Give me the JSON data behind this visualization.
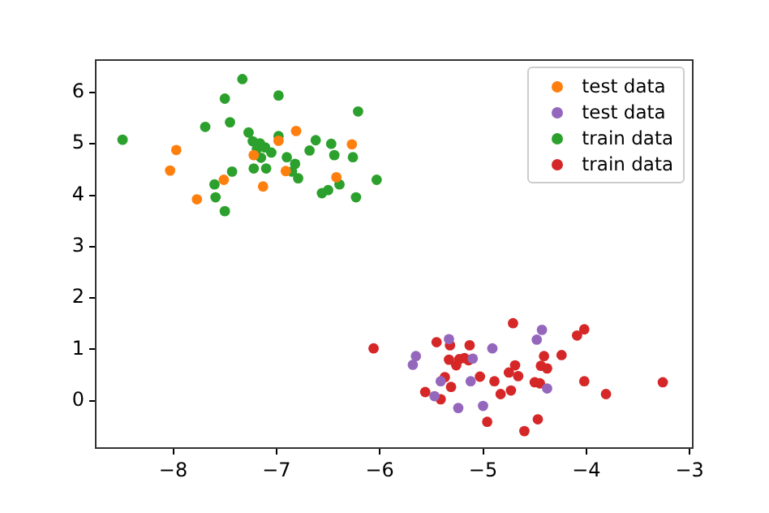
{
  "chart_data": {
    "type": "scatter",
    "xlim": [
      -8.75,
      -2.97
    ],
    "ylim": [
      -0.92,
      6.63
    ],
    "xticks": [
      {
        "value": -8,
        "label": "−8"
      },
      {
        "value": -7,
        "label": "−7"
      },
      {
        "value": -6,
        "label": "−6"
      },
      {
        "value": -5,
        "label": "−5"
      },
      {
        "value": -4,
        "label": "−4"
      },
      {
        "value": -3,
        "label": "−3"
      }
    ],
    "yticks": [
      0,
      1,
      2,
      3,
      4,
      5,
      6
    ],
    "grid": false,
    "legend": "top right",
    "marker": "circle",
    "series": [
      {
        "name": "test data",
        "color": "#ff7f0e",
        "x": [
          -7.97,
          -8.03,
          -7.77,
          -7.51,
          -7.13,
          -6.91,
          -6.81,
          -6.98,
          -7.22,
          -6.42,
          -6.27
        ],
        "values": [
          4.88,
          4.48,
          3.92,
          4.3,
          4.17,
          4.47,
          5.25,
          5.06,
          4.78,
          4.35,
          4.99
        ]
      },
      {
        "name": "test data",
        "color": "#9467bd",
        "x": [
          -5.33,
          -4.43,
          -4.48,
          -5.65,
          -5.68,
          -4.91,
          -5.1,
          -5.41,
          -5.12,
          -5.47,
          -5.24,
          -5.0,
          -4.38
        ],
        "values": [
          1.2,
          1.38,
          1.19,
          0.87,
          0.7,
          1.02,
          0.82,
          0.38,
          0.38,
          0.09,
          -0.14,
          -0.1,
          0.24
        ]
      },
      {
        "name": "train data",
        "color": "#2ca02c",
        "x": [
          -8.49,
          -7.33,
          -7.5,
          -6.98,
          -6.21,
          -7.69,
          -7.45,
          -7.27,
          -6.98,
          -7.23,
          -7.16,
          -7.19,
          -7.15,
          -7.05,
          -7.11,
          -6.9,
          -6.62,
          -6.68,
          -6.47,
          -6.44,
          -6.26,
          -6.03,
          -7.22,
          -7.1,
          -7.43,
          -7.6,
          -7.59,
          -7.5,
          -6.85,
          -6.82,
          -6.79,
          -6.56,
          -6.5,
          -6.39,
          -6.23
        ],
        "values": [
          5.08,
          6.26,
          5.88,
          5.94,
          5.63,
          5.33,
          5.42,
          5.22,
          5.15,
          5.05,
          5.01,
          4.9,
          4.73,
          4.83,
          4.93,
          4.74,
          5.07,
          4.87,
          5.0,
          4.78,
          4.74,
          4.3,
          4.52,
          4.52,
          4.46,
          4.21,
          3.96,
          3.69,
          4.46,
          4.61,
          4.33,
          4.04,
          4.1,
          4.21,
          3.96
        ]
      },
      {
        "name": "train data",
        "color": "#d62728",
        "x": [
          -6.06,
          -4.71,
          -5.45,
          -5.32,
          -5.13,
          -5.33,
          -5.26,
          -5.23,
          -5.18,
          -5.14,
          -4.09,
          -4.02,
          -4.41,
          -4.24,
          -4.69,
          -4.44,
          -4.38,
          -4.75,
          -4.66,
          -5.03,
          -4.89,
          -5.37,
          -5.31,
          -5.56,
          -5.41,
          -4.83,
          -4.73,
          -4.5,
          -4.45,
          -4.02,
          -3.81,
          -3.26,
          -4.96,
          -4.6,
          -4.47
        ],
        "values": [
          1.02,
          1.51,
          1.14,
          1.08,
          1.08,
          0.8,
          0.69,
          0.81,
          0.83,
          0.79,
          1.27,
          1.39,
          0.87,
          0.89,
          0.69,
          0.68,
          0.63,
          0.55,
          0.48,
          0.47,
          0.38,
          0.46,
          0.27,
          0.17,
          0.03,
          0.13,
          0.2,
          0.36,
          0.34,
          0.38,
          0.13,
          0.36,
          -0.41,
          -0.59,
          -0.36
        ]
      }
    ]
  }
}
